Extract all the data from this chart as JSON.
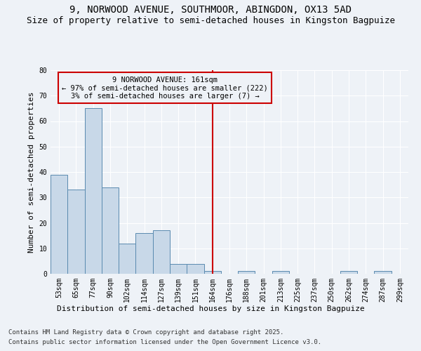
{
  "title1": "9, NORWOOD AVENUE, SOUTHMOOR, ABINGDON, OX13 5AD",
  "title2": "Size of property relative to semi-detached houses in Kingston Bagpuize",
  "xlabel": "Distribution of semi-detached houses by size in Kingston Bagpuize",
  "ylabel": "Number of semi-detached properties",
  "categories": [
    "53sqm",
    "65sqm",
    "77sqm",
    "90sqm",
    "102sqm",
    "114sqm",
    "127sqm",
    "139sqm",
    "151sqm",
    "164sqm",
    "176sqm",
    "188sqm",
    "201sqm",
    "213sqm",
    "225sqm",
    "237sqm",
    "250sqm",
    "262sqm",
    "274sqm",
    "287sqm",
    "299sqm"
  ],
  "values": [
    39,
    33,
    65,
    34,
    12,
    16,
    17,
    4,
    4,
    1,
    0,
    1,
    0,
    1,
    0,
    0,
    0,
    1,
    0,
    1,
    0
  ],
  "bar_color": "#c8d8e8",
  "bar_edge_color": "#5a8ab0",
  "vline_x_idx": 9.0,
  "vline_color": "#cc0000",
  "annotation_text": "9 NORWOOD AVENUE: 161sqm\n← 97% of semi-detached houses are smaller (222)\n3% of semi-detached houses are larger (7) →",
  "annotation_box_color": "#cc0000",
  "ylim": [
    0,
    80
  ],
  "yticks": [
    0,
    10,
    20,
    30,
    40,
    50,
    60,
    70,
    80
  ],
  "footnote1": "Contains HM Land Registry data © Crown copyright and database right 2025.",
  "footnote2": "Contains public sector information licensed under the Open Government Licence v3.0.",
  "bg_color": "#eef2f7",
  "grid_color": "#ffffff",
  "title1_fontsize": 10,
  "title2_fontsize": 9,
  "tick_fontsize": 7,
  "ylabel_fontsize": 8,
  "xlabel_fontsize": 8,
  "footnote_fontsize": 6.5,
  "annot_fontsize": 7.5
}
